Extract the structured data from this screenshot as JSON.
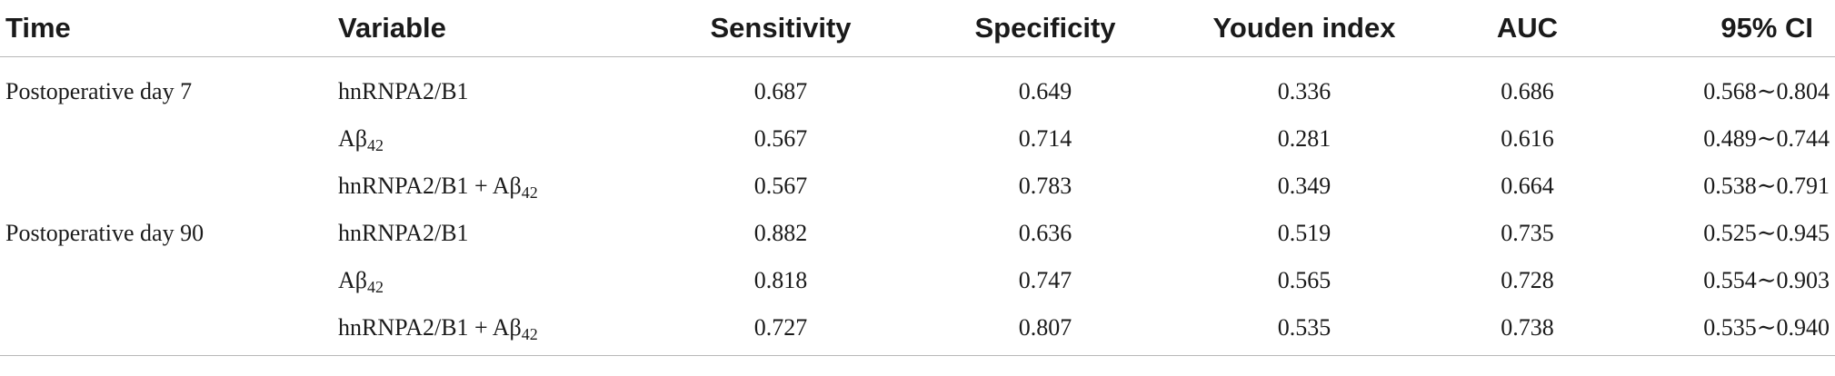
{
  "headers": {
    "time": "Time",
    "variable": "Variable",
    "sensitivity": "Sensitivity",
    "specificity": "Specificity",
    "youden": "Youden index",
    "auc": "AUC",
    "ci": "95% CI"
  },
  "rows": [
    {
      "time": "Postoperative day 7",
      "var_main": "hnRNPA2/B1",
      "var_sub": "",
      "sensitivity": "0.687",
      "specificity": "0.649",
      "youden": "0.336",
      "auc": "0.686",
      "ci": "0.568∼0.804"
    },
    {
      "time": "",
      "var_main": "Aβ",
      "var_sub": "42",
      "sensitivity": "0.567",
      "specificity": "0.714",
      "youden": "0.281",
      "auc": "0.616",
      "ci": "0.489∼0.744"
    },
    {
      "time": "",
      "var_main": "hnRNPA2/B1 + Aβ",
      "var_sub": "42",
      "sensitivity": "0.567",
      "specificity": "0.783",
      "youden": "0.349",
      "auc": "0.664",
      "ci": "0.538∼0.791"
    },
    {
      "time": "Postoperative day 90",
      "var_main": "hnRNPA2/B1",
      "var_sub": "",
      "sensitivity": "0.882",
      "specificity": "0.636",
      "youden": "0.519",
      "auc": "0.735",
      "ci": "0.525∼0.945"
    },
    {
      "time": "",
      "var_main": "Aβ",
      "var_sub": "42",
      "sensitivity": "0.818",
      "specificity": "0.747",
      "youden": "0.565",
      "auc": "0.728",
      "ci": "0.554∼0.903"
    },
    {
      "time": "",
      "var_main": "hnRNPA2/B1 + Aβ",
      "var_sub": "42",
      "sensitivity": "0.727",
      "specificity": "0.807",
      "youden": "0.535",
      "auc": "0.738",
      "ci": "0.535∼0.940"
    }
  ]
}
